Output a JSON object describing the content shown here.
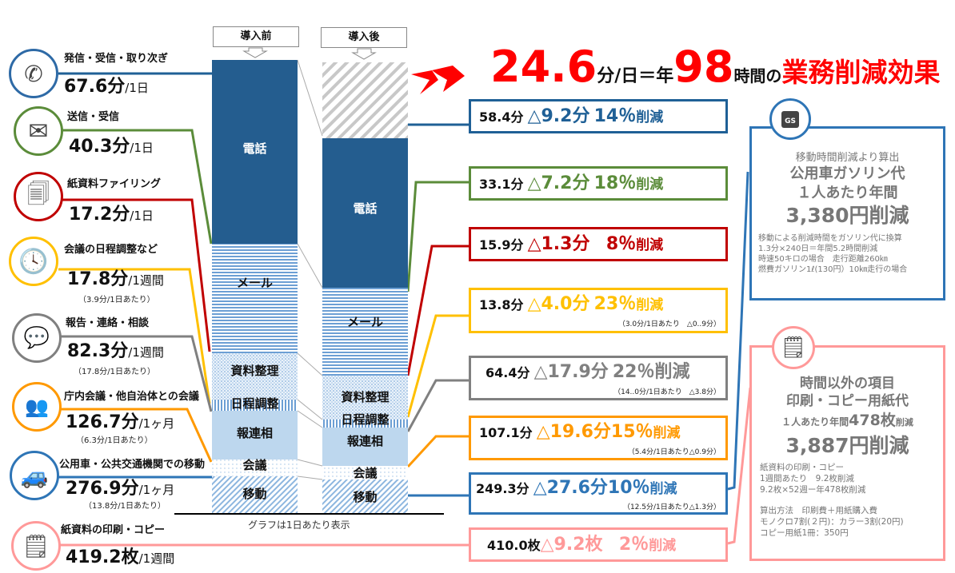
{
  "headline": {
    "num1": "24.6",
    "unit1": "分/日＝年",
    "num2": "98",
    "unit2": "時間の",
    "tail": "業務削減効果"
  },
  "chart": {
    "before_label": "導入前",
    "after_label": "導入後",
    "footnote": "グラフは1日あたり表示",
    "segments": [
      "電話",
      "メール",
      "資料整理",
      "日程調整",
      "報連相",
      "会議",
      "移動"
    ]
  },
  "left_items": [
    {
      "title": "発信・受信・取り次ぎ",
      "value": "67.6分",
      "unit": "/1日",
      "icon": "phone-icon",
      "color": "#2e6aa6"
    },
    {
      "title": "送信・受信",
      "value": "40.3分",
      "unit": "/1日",
      "icon": "mail-icon",
      "color": "#5b8c3a"
    },
    {
      "title": "紙資料ファイリング",
      "value": "17.2分",
      "unit": "/1日",
      "icon": "documents-icon",
      "color": "#c00000"
    },
    {
      "title": "会議の日程調整など",
      "value": "17.8分",
      "unit": "/1週間",
      "note": "（3.9分/1日あたり）",
      "icon": "clock-icon",
      "color": "#ffc000"
    },
    {
      "title": "報告・連絡・相談",
      "value": "82.3分",
      "unit": "/1週間",
      "note": "（17.8分/1日あたり）",
      "icon": "chat-icon",
      "color": "#808080"
    },
    {
      "title": "庁内会議・他自治体との会議",
      "value": "126.7分",
      "unit": "/1ヶ月",
      "note": "（6.3分/1日あたり）",
      "icon": "meeting-icon",
      "color": "#ff9900"
    },
    {
      "title": "公用車・公共交通機関での移動",
      "value": "276.9分",
      "unit": "/1ヶ月",
      "note": "（13.8分/1日あたり）",
      "icon": "car-icon",
      "color": "#2e75b6"
    },
    {
      "title": "紙資料の印刷・コピー",
      "value": "419.2枚",
      "unit": "/1週間",
      "icon": "note-icon",
      "color": "#ff9999"
    }
  ],
  "results": [
    {
      "after": "58.4分",
      "delta": "△9.2分",
      "pct": "14％",
      "cut": "削減",
      "color": "#1f6096"
    },
    {
      "after": "33.1分",
      "delta": "△7.2分",
      "pct": "18％",
      "cut": "削減",
      "color": "#5b8c3a"
    },
    {
      "after": "15.9分",
      "delta": "△1.3分",
      "pct": "8％",
      "cut": "削減",
      "color": "#c00000"
    },
    {
      "after": "13.8分",
      "delta": "△4.0分",
      "pct": "23％",
      "cut": "削減",
      "note": "（3.0分/1日あたり　△0..9分）",
      "color": "#ffc000"
    },
    {
      "after": "64.4分",
      "delta": "△17.9分",
      "pct": "22％",
      "cut": "削減",
      "note": "（14..0分/1日あたり　△3.8分）",
      "color": "#808080"
    },
    {
      "after": "107.1分",
      "delta": "△19.6分",
      "pct": "15％",
      "cut": "削減",
      "note": "（5.4分/1日あたり△0.9分）",
      "color": "#ff9900"
    },
    {
      "after": "249.3分",
      "delta": "△27.6分",
      "pct": "10％",
      "cut": "削減",
      "note": "（12.5分/1日あたり△1.3分）",
      "color": "#2e75b6"
    },
    {
      "after": "410.0枚",
      "delta": "△9.2枚",
      "pct": "2％",
      "cut": "削減",
      "color": "#ff9999"
    }
  ],
  "gas": {
    "lead": "移動時間削減より算出",
    "t1": "公用車ガソリン代",
    "t2": "１人あたり年間",
    "big": "3,380円削減",
    "lines": [
      "移動による削減時間をガソリン代に換算",
      "1.3分×240日＝年間5.2時間削減",
      "時速50キロの場合　走行距離260㎞",
      "燃費ガソリン1ℓ(130円）10㎞走行の場合"
    ],
    "icon_text": "GS"
  },
  "paper": {
    "t1": "時間以外の項目",
    "t2": "印刷・コピー用紙代",
    "t3a": "１人あたり年間",
    "t3b": "478枚",
    "t3c": "削減",
    "big": "3,887円削減",
    "lines": [
      "紙資料の印刷・コピー",
      "1週間あたり　9.2枚削減",
      "9.2枚×52週ー年478枚削減",
      "",
      "算出方法　印刷費＋用紙購入費",
      "モノクロ7割(２円)：カラー3割(20円)",
      "コピー用紙1冊：350円"
    ]
  }
}
